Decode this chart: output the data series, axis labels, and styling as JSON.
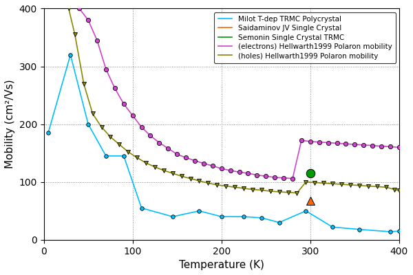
{
  "title": "",
  "xlabel": "Temperature (K)",
  "ylabel": "Mobility (cm²/Vs)",
  "xlim": [
    0,
    400
  ],
  "ylim": [
    0,
    400
  ],
  "yticks": [
    0,
    100,
    200,
    300,
    400
  ],
  "xticks": [
    0,
    100,
    200,
    300,
    400
  ],
  "figsize": [
    6.0,
    4.0
  ],
  "dpi": 100,
  "milot_x": [
    5,
    30,
    50,
    70,
    90,
    110,
    145,
    175,
    200,
    225,
    245,
    265,
    295,
    325,
    355,
    390,
    400
  ],
  "milot_y": [
    185,
    320,
    200,
    145,
    145,
    55,
    40,
    50,
    40,
    40,
    38,
    30,
    50,
    22,
    18,
    14,
    15
  ],
  "milot_color": "#00BFFF",
  "saidaminov_x": [
    300
  ],
  "saidaminov_y": [
    67
  ],
  "saidaminov_color": "#FF6600",
  "semonin_x": [
    300
  ],
  "semonin_y": [
    115
  ],
  "semonin_color": "#009900",
  "electrons_x": [
    40,
    50,
    60,
    70,
    80,
    90,
    100,
    110,
    120,
    130,
    140,
    150,
    160,
    170,
    180,
    190,
    200,
    210,
    220,
    230,
    240,
    250,
    260,
    270,
    280,
    290,
    300,
    310,
    320,
    330,
    340,
    350,
    360,
    370,
    380,
    390,
    400
  ],
  "electrons_y": [
    400,
    380,
    345,
    295,
    262,
    235,
    215,
    195,
    180,
    168,
    158,
    148,
    142,
    137,
    132,
    128,
    123,
    120,
    117,
    115,
    112,
    110,
    108,
    107,
    106,
    172,
    170,
    169,
    168,
    167,
    166,
    165,
    164,
    163,
    162,
    161,
    160
  ],
  "electrons_color": "#CC44CC",
  "holes_x": [
    28,
    35,
    45,
    55,
    65,
    75,
    85,
    95,
    105,
    115,
    125,
    135,
    145,
    155,
    165,
    175,
    185,
    195,
    205,
    215,
    225,
    235,
    245,
    255,
    265,
    275,
    285,
    295,
    305,
    315,
    325,
    335,
    345,
    355,
    365,
    375,
    385,
    395,
    400
  ],
  "holes_y": [
    400,
    355,
    270,
    218,
    195,
    178,
    165,
    152,
    142,
    133,
    126,
    120,
    115,
    110,
    106,
    102,
    98,
    95,
    93,
    91,
    89,
    87,
    86,
    84,
    83,
    82,
    81,
    100,
    99,
    98,
    97,
    96,
    95,
    94,
    93,
    92,
    91,
    87,
    85
  ],
  "holes_color": "#888800",
  "legend_labels": [
    "Milot T-dep TRMC Polycrystal",
    "Saidaminov JV Single Crystal",
    "Semonin Single Crystal TRMC",
    "(electrons) Hellwarth1999 Polaron mobility",
    "(holes) Hellwarth1999 Polaron mobility"
  ]
}
